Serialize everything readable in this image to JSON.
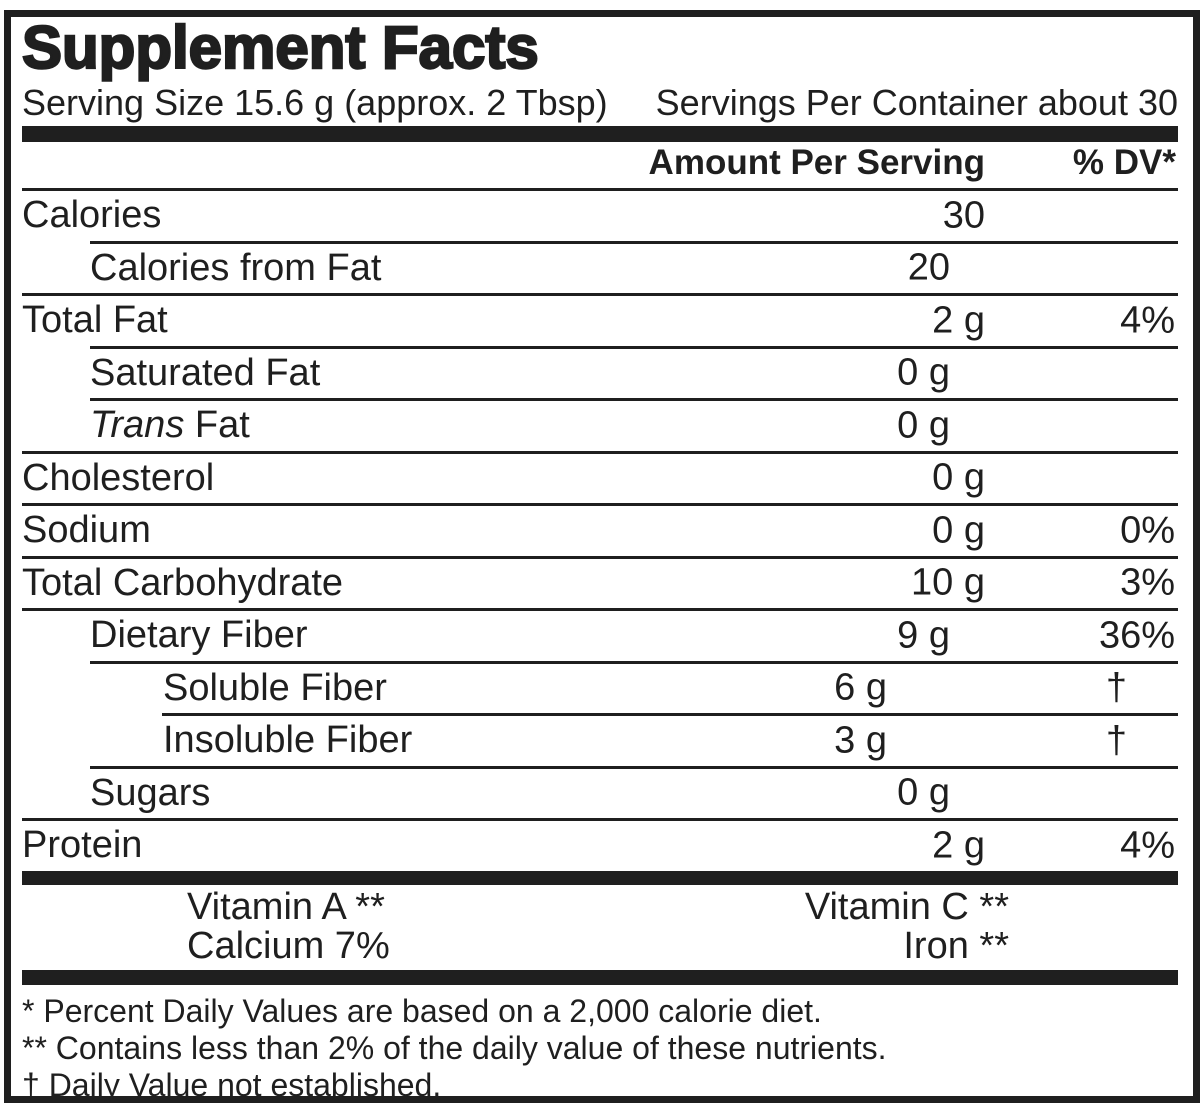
{
  "label": {
    "title": "Supplement Facts",
    "serving_size": "Serving Size 15.6 g (approx. 2 Tbsp)",
    "servings_per_container": "Servings Per Container about 30",
    "column_headers": {
      "amount": "Amount Per Serving",
      "dv": "% DV*"
    },
    "rows": [
      {
        "name": "calories",
        "label": "Calories",
        "amount": "30",
        "dv": "",
        "indent": 0,
        "rule": null
      },
      {
        "name": "calories-from-fat",
        "label": "Calories from Fat",
        "amount": "20",
        "dv": "",
        "indent": 1,
        "rule": 1
      },
      {
        "name": "total-fat",
        "label": "Total Fat",
        "amount": "2 g",
        "dv": "4%",
        "indent": 0,
        "rule": 0
      },
      {
        "name": "saturated-fat",
        "label": "Saturated Fat",
        "amount": "0 g",
        "dv": "",
        "indent": 1,
        "rule": 1
      },
      {
        "name": "trans-fat",
        "label": "Fat",
        "label_italic_prefix": "Trans",
        "amount": "0 g",
        "dv": "",
        "indent": 1,
        "rule": 1
      },
      {
        "name": "cholesterol",
        "label": "Cholesterol",
        "amount": "0 g",
        "dv": "",
        "indent": 0,
        "rule": 0
      },
      {
        "name": "sodium",
        "label": "Sodium",
        "amount": "0 g",
        "dv": "0%",
        "indent": 0,
        "rule": 0
      },
      {
        "name": "total-carbohydrate",
        "label": "Total Carbohydrate",
        "amount": "10 g",
        "dv": "3%",
        "indent": 0,
        "rule": 0
      },
      {
        "name": "dietary-fiber",
        "label": "Dietary Fiber",
        "amount": "9 g",
        "dv": "36%",
        "indent": 1,
        "rule": 0
      },
      {
        "name": "soluble-fiber",
        "label": "Soluble Fiber",
        "amount": "6 g",
        "dv": "†",
        "indent": 2,
        "rule": 1
      },
      {
        "name": "insoluble-fiber",
        "label": "Insoluble Fiber",
        "amount": "3 g",
        "dv": "†",
        "indent": 2,
        "rule": 2
      },
      {
        "name": "sugars",
        "label": "Sugars",
        "amount": "0 g",
        "dv": "",
        "indent": 1,
        "rule": 1
      },
      {
        "name": "protein",
        "label": "Protein",
        "amount": "2 g",
        "dv": "4%",
        "indent": 0,
        "rule": 0
      }
    ],
    "micronutrients": [
      {
        "left": "Vitamin A **",
        "right": "Vitamin C **"
      },
      {
        "left": "Calcium 7%",
        "right": "Iron **"
      }
    ],
    "footnotes": [
      "* Percent Daily Values are based on a 2,000 calorie diet.",
      "** Contains less than 2% of the daily value of these nutrients.",
      "† Daily Value not established."
    ],
    "colors": {
      "ink": "#1f1f1f",
      "paper": "#ffffff"
    }
  }
}
